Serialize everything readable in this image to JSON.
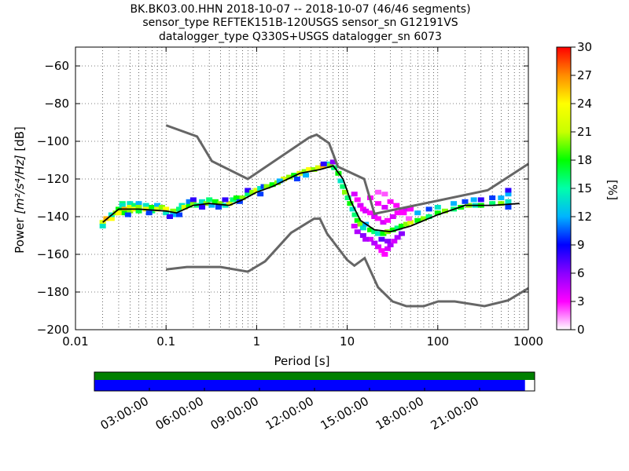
{
  "chart_data": {
    "type": "heatmap",
    "title_lines": [
      "BK.BK03.00.HHN   2018-10-07 -- 2018-10-07  (46/46 segments)",
      "sensor_type REFTEK151B-120USGS sensor_sn G12191VS",
      "datalogger_type Q330S+USGS datalogger_sn 6073"
    ],
    "xlabel": "Period [s]",
    "ylabel_prefix": "Power ",
    "ylabel_units": "[m²/s⁴/Hz]",
    "ylabel_suffix": " [dB]",
    "x_scale": "log",
    "xlim": [
      0.01,
      1000
    ],
    "ylim": [
      -200,
      -50
    ],
    "x_ticks": [
      0.01,
      0.1,
      1,
      10,
      100,
      1000
    ],
    "x_tick_labels": [
      "0.01",
      "0.1",
      "1",
      "10",
      "100",
      "1000"
    ],
    "y_ticks": [
      -200,
      -180,
      -160,
      -140,
      -120,
      -100,
      -80,
      -60
    ],
    "y_tick_labels": [
      "−200",
      "−180",
      "−160",
      "−140",
      "−120",
      "−100",
      "−80",
      "−60"
    ],
    "grid": "dotted",
    "colorbar": {
      "label": "[%]",
      "range": [
        0,
        30
      ],
      "ticks": [
        0,
        3,
        6,
        9,
        12,
        15,
        18,
        21,
        24,
        27,
        30
      ],
      "colormap": [
        "#ffffff",
        "#ff00ff",
        "#8a00ff",
        "#0000ff",
        "#00b4ff",
        "#00ffaa",
        "#00ff00",
        "#c8ff00",
        "#ffff00",
        "#ff8c00",
        "#ff0000"
      ]
    },
    "noise_model_color": "#666666",
    "high_noise_model": [
      [
        0.1,
        -91.5
      ],
      [
        0.22,
        -97.4
      ],
      [
        0.32,
        -110.5
      ],
      [
        0.8,
        -120.0
      ],
      [
        3.8,
        -98.0
      ],
      [
        4.6,
        -96.5
      ],
      [
        6.3,
        -101.0
      ],
      [
        7.9,
        -113.5
      ],
      [
        15.4,
        -120.0
      ],
      [
        20.0,
        -138.5
      ],
      [
        354.8,
        -126.0
      ],
      [
        1000,
        -112.0
      ]
    ],
    "low_noise_model": [
      [
        0.1,
        -168.0
      ],
      [
        0.17,
        -166.7
      ],
      [
        0.4,
        -166.7
      ],
      [
        0.8,
        -169.2
      ],
      [
        1.24,
        -163.7
      ],
      [
        2.4,
        -148.6
      ],
      [
        4.3,
        -141.1
      ],
      [
        5.0,
        -141.1
      ],
      [
        6.0,
        -149.0
      ],
      [
        10.0,
        -163.0
      ],
      [
        12.0,
        -166.0
      ],
      [
        15.6,
        -162.0
      ],
      [
        21.9,
        -177.5
      ],
      [
        31.6,
        -185.0
      ],
      [
        45.0,
        -187.5
      ],
      [
        70.0,
        -187.5
      ],
      [
        101.0,
        -185.0
      ],
      [
        154.0,
        -185.0
      ],
      [
        328.0,
        -187.5
      ],
      [
        600.0,
        -184.4
      ],
      [
        1000.0,
        -178.0
      ]
    ],
    "mean_line_color": "#000000",
    "mean_line": [
      [
        0.02,
        -143
      ],
      [
        0.03,
        -136
      ],
      [
        0.05,
        -136
      ],
      [
        0.1,
        -137
      ],
      [
        0.13,
        -138
      ],
      [
        0.2,
        -134
      ],
      [
        0.3,
        -133
      ],
      [
        0.5,
        -134
      ],
      [
        0.7,
        -131
      ],
      [
        1,
        -127
      ],
      [
        1.5,
        -124
      ],
      [
        2,
        -121
      ],
      [
        3,
        -117
      ],
      [
        5,
        -115
      ],
      [
        7,
        -113
      ],
      [
        9,
        -120
      ],
      [
        11,
        -132
      ],
      [
        14,
        -142
      ],
      [
        20,
        -147
      ],
      [
        30,
        -148
      ],
      [
        50,
        -145
      ],
      [
        100,
        -139
      ],
      [
        200,
        -134
      ],
      [
        400,
        -134
      ],
      [
        800,
        -133
      ]
    ],
    "psd_cells": [
      [
        0.02,
        -143,
        22
      ],
      [
        0.02,
        -145,
        14
      ],
      [
        0.022,
        -141,
        26
      ],
      [
        0.025,
        -141,
        24
      ],
      [
        0.025,
        -139,
        14
      ],
      [
        0.028,
        -138,
        20
      ],
      [
        0.03,
        -136,
        18
      ],
      [
        0.03,
        -138,
        24
      ],
      [
        0.033,
        -133,
        16
      ],
      [
        0.033,
        -134,
        14
      ],
      [
        0.035,
        -136,
        26
      ],
      [
        0.035,
        -138,
        18
      ],
      [
        0.04,
        -133,
        14
      ],
      [
        0.04,
        -135,
        22
      ],
      [
        0.04,
        -137,
        20
      ],
      [
        0.045,
        -134,
        16
      ],
      [
        0.045,
        -136,
        24
      ],
      [
        0.05,
        -133,
        12
      ],
      [
        0.05,
        -135,
        20
      ],
      [
        0.05,
        -137,
        17
      ],
      [
        0.06,
        -134,
        14
      ],
      [
        0.06,
        -136,
        23
      ],
      [
        0.07,
        -135,
        18
      ],
      [
        0.07,
        -137,
        16
      ],
      [
        0.08,
        -134,
        12
      ],
      [
        0.08,
        -136,
        22
      ],
      [
        0.09,
        -135,
        20
      ],
      [
        0.1,
        -136,
        24
      ],
      [
        0.1,
        -138,
        14
      ],
      [
        0.12,
        -137,
        20
      ],
      [
        0.12,
        -139,
        12
      ],
      [
        0.14,
        -136,
        16
      ],
      [
        0.15,
        -134,
        14
      ],
      [
        0.16,
        -135,
        22
      ],
      [
        0.18,
        -134,
        18
      ],
      [
        0.18,
        -132,
        11
      ],
      [
        0.2,
        -133,
        20
      ],
      [
        0.2,
        -131,
        8
      ],
      [
        0.22,
        -134,
        16
      ],
      [
        0.25,
        -132,
        14
      ],
      [
        0.28,
        -133,
        20
      ],
      [
        0.3,
        -131,
        16
      ],
      [
        0.32,
        -134,
        12
      ],
      [
        0.35,
        -132,
        18
      ],
      [
        0.4,
        -133,
        20
      ],
      [
        0.45,
        -134,
        14
      ],
      [
        0.5,
        -133,
        22
      ],
      [
        0.55,
        -131,
        16
      ],
      [
        0.6,
        -130,
        18
      ],
      [
        0.7,
        -130,
        20
      ],
      [
        0.8,
        -128,
        16
      ],
      [
        0.8,
        -126,
        8
      ],
      [
        0.9,
        -127,
        20
      ],
      [
        1.0,
        -126,
        22
      ],
      [
        1.1,
        -125,
        14
      ],
      [
        1.2,
        -124,
        10
      ],
      [
        1.3,
        -124,
        20
      ],
      [
        1.5,
        -123,
        18
      ],
      [
        1.7,
        -122,
        20
      ],
      [
        2.0,
        -120,
        22
      ],
      [
        2.3,
        -119,
        20
      ],
      [
        2.6,
        -118,
        18
      ],
      [
        3.0,
        -117,
        22
      ],
      [
        3.4,
        -116,
        20
      ],
      [
        3.8,
        -115,
        24
      ],
      [
        4.3,
        -115,
        20
      ],
      [
        4.8,
        -114,
        22
      ],
      [
        5.4,
        -113,
        26
      ],
      [
        6.0,
        -112,
        14
      ],
      [
        6.5,
        -113,
        20
      ],
      [
        7.2,
        -114,
        16
      ],
      [
        8.0,
        -117,
        18
      ],
      [
        8.5,
        -121,
        14
      ],
      [
        9.0,
        -124,
        16
      ],
      [
        9.5,
        -127,
        20
      ],
      [
        10.2,
        -130,
        16
      ],
      [
        10.8,
        -133,
        18
      ],
      [
        11.5,
        -136,
        14
      ],
      [
        12.2,
        -139,
        16
      ],
      [
        13.0,
        -142,
        18
      ],
      [
        14.0,
        -144,
        20
      ],
      [
        15.0,
        -146,
        14
      ],
      [
        16.0,
        -144,
        12
      ],
      [
        18.0,
        -147,
        18
      ],
      [
        20.0,
        -148,
        16
      ],
      [
        22.0,
        -149,
        14
      ],
      [
        25.0,
        -149,
        18
      ],
      [
        28.0,
        -148,
        20
      ],
      [
        32.0,
        -147,
        18
      ],
      [
        36.0,
        -146,
        16
      ],
      [
        40.0,
        -145,
        18
      ],
      [
        45.0,
        -144,
        20
      ],
      [
        50.0,
        -143,
        22
      ],
      [
        60.0,
        -142,
        18
      ],
      [
        70.0,
        -141,
        20
      ],
      [
        80.0,
        -140,
        16
      ],
      [
        100.0,
        -138,
        18
      ],
      [
        120.0,
        -137,
        20
      ],
      [
        150.0,
        -136,
        16
      ],
      [
        180.0,
        -135,
        18
      ],
      [
        220.0,
        -134,
        20
      ],
      [
        260.0,
        -134,
        14
      ],
      [
        300.0,
        -134,
        18
      ],
      [
        400.0,
        -133,
        16
      ],
      [
        500.0,
        -133,
        20
      ],
      [
        600.0,
        -132,
        14
      ],
      [
        600.0,
        -128,
        12
      ],
      [
        600.0,
        -135,
        10
      ],
      [
        12.0,
        -128,
        4
      ],
      [
        13.0,
        -131,
        3
      ],
      [
        14.0,
        -134,
        4
      ],
      [
        15.0,
        -136,
        3
      ],
      [
        16.0,
        -137,
        4
      ],
      [
        18.0,
        -138,
        3
      ],
      [
        20.0,
        -140,
        4
      ],
      [
        22.0,
        -141,
        3
      ],
      [
        25.0,
        -143,
        4
      ],
      [
        28.0,
        -142,
        3
      ],
      [
        32.0,
        -140,
        4
      ],
      [
        36.0,
        -138,
        3
      ],
      [
        40.0,
        -137,
        3
      ],
      [
        45.0,
        -136,
        4
      ],
      [
        50.0,
        -136,
        3
      ],
      [
        18.0,
        -130,
        3
      ],
      [
        22.0,
        -133,
        3
      ],
      [
        26.0,
        -135,
        4
      ],
      [
        22.0,
        -127,
        2
      ],
      [
        26.0,
        -128,
        2
      ],
      [
        30.0,
        -132,
        3
      ],
      [
        35.0,
        -134,
        3
      ],
      [
        42.0,
        -138,
        3
      ],
      [
        48.0,
        -141,
        2
      ],
      [
        18.0,
        -152,
        4
      ],
      [
        20.0,
        -154,
        5
      ],
      [
        22.0,
        -156,
        4
      ],
      [
        24.0,
        -158,
        3
      ],
      [
        26.0,
        -160,
        3
      ],
      [
        28.0,
        -157,
        4
      ],
      [
        30.0,
        -155,
        5
      ],
      [
        33.0,
        -153,
        4
      ],
      [
        36.0,
        -151,
        5
      ],
      [
        40.0,
        -149,
        6
      ],
      [
        24.0,
        -152,
        7
      ],
      [
        28.0,
        -153,
        6
      ],
      [
        12.0,
        -145,
        4
      ],
      [
        13.0,
        -148,
        5
      ],
      [
        15.0,
        -150,
        6
      ],
      [
        16.0,
        -152,
        5
      ],
      [
        60.0,
        -138,
        12
      ],
      [
        80.0,
        -136,
        10
      ],
      [
        100.0,
        -135,
        14
      ],
      [
        150.0,
        -133,
        12
      ],
      [
        200.0,
        -132,
        10
      ],
      [
        250.0,
        -131,
        12
      ],
      [
        300.0,
        -131,
        8
      ],
      [
        400.0,
        -130,
        10
      ],
      [
        500.0,
        -130,
        12
      ],
      [
        600.0,
        -126,
        8
      ],
      [
        7.0,
        -111,
        6
      ],
      [
        5.5,
        -112,
        8
      ],
      [
        3.5,
        -118,
        12
      ],
      [
        2.8,
        -120,
        10
      ],
      [
        1.8,
        -121,
        12
      ],
      [
        1.1,
        -128,
        10
      ],
      [
        0.65,
        -132,
        10
      ],
      [
        0.45,
        -131,
        8
      ],
      [
        0.38,
        -135,
        10
      ],
      [
        0.25,
        -135,
        8
      ],
      [
        0.14,
        -139,
        10
      ],
      [
        0.11,
        -140,
        8
      ],
      [
        0.065,
        -138,
        10
      ],
      [
        0.038,
        -139,
        10
      ]
    ],
    "timeline": {
      "tick_labels": [
        "03:00:00",
        "06:00:00",
        "09:00:00",
        "12:00:00",
        "15:00:00",
        "18:00:00",
        "21:00:00"
      ],
      "tick_hours": [
        3,
        6,
        9,
        12,
        15,
        18,
        21
      ],
      "range_hours": [
        0,
        24
      ],
      "available_color": "#008000",
      "used_color": "#0000ff",
      "available_fraction": 1.0,
      "used_fraction": 0.978
    }
  }
}
